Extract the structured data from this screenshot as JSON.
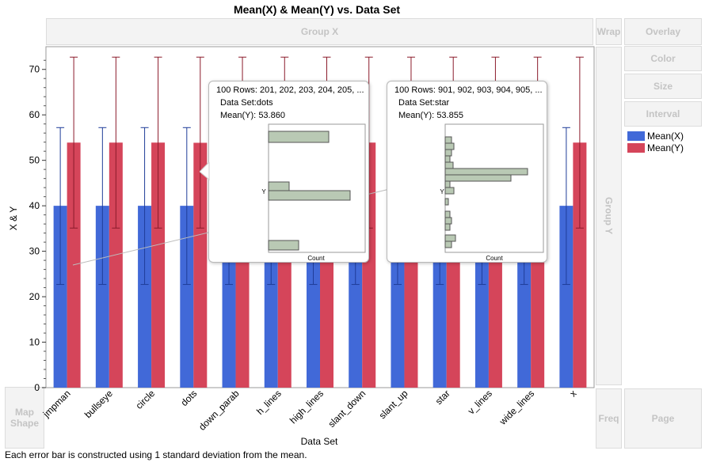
{
  "chart_data": {
    "type": "bar",
    "title": "Mean(X) & Mean(Y) vs. Data Set",
    "xlabel": "Data Set",
    "ylabel": "X & Y",
    "ylim": [
      0,
      75
    ],
    "yticks": [
      0,
      10,
      20,
      30,
      40,
      50,
      60,
      70
    ],
    "categories": [
      "jmpman",
      "bullseye",
      "circle",
      "dots",
      "down_parab",
      "h_lines",
      "high_lines",
      "slant_down",
      "slant_up",
      "star",
      "v_lines",
      "wide_lines",
      "x"
    ],
    "series": [
      {
        "name": "Mean(X)",
        "color": "#4169d8",
        "values": [
          40,
          40,
          40,
          40,
          40,
          40,
          40,
          40,
          40,
          40,
          40,
          40,
          40
        ],
        "err_low": [
          22.7,
          22.7,
          22.7,
          22.7,
          22.7,
          22.7,
          22.7,
          22.7,
          22.7,
          22.7,
          22.7,
          22.7,
          22.7
        ],
        "err_high": [
          57.2,
          57.2,
          57.2,
          57.2,
          57.2,
          57.2,
          57.2,
          57.2,
          57.2,
          57.2,
          57.2,
          57.2,
          57.2
        ]
      },
      {
        "name": "Mean(Y)",
        "color": "#d5455a",
        "values": [
          53.9,
          53.9,
          53.9,
          53.86,
          53.9,
          53.9,
          53.9,
          53.9,
          53.9,
          53.855,
          53.9,
          53.9,
          53.9
        ],
        "err_low": [
          35.1,
          35.1,
          35.1,
          35.1,
          35.1,
          35.1,
          35.1,
          35.1,
          35.1,
          35.1,
          35.1,
          35.1,
          35.1
        ],
        "err_high": [
          72.7,
          72.7,
          72.7,
          72.7,
          72.7,
          72.7,
          72.7,
          72.7,
          72.7,
          72.7,
          72.7,
          72.7,
          72.7
        ]
      }
    ],
    "footnote": "Each error bar is constructed using 1 standard deviation from the mean."
  },
  "zones": {
    "group_x": "Group X",
    "wrap": "Wrap",
    "overlay": "Overlay",
    "color": "Color",
    "size": "Size",
    "interval": "Interval",
    "group_y": "Group Y",
    "map_shape": "Map Shape",
    "freq": "Freq",
    "page": "Page"
  },
  "tooltips": [
    {
      "rows": "100 Rows:  201, 202, 203, 204, 205, ...",
      "dataset_label": "Data Set:",
      "dataset": "dots",
      "mean_label": "Mean(Y):",
      "mean": "53.860",
      "axis_label": "Y",
      "count_label": "Count",
      "hist": [
        0,
        0,
        0,
        0,
        0,
        0,
        0,
        0,
        0,
        0,
        0,
        1,
        0,
        0,
        0,
        0,
        0,
        0,
        0,
        0,
        0,
        0,
        0,
        0,
        0,
        0,
        0,
        0,
        0,
        0,
        0,
        0,
        0,
        0,
        0,
        0,
        0,
        0,
        0,
        0,
        0,
        0,
        0,
        0,
        0,
        0,
        0,
        0,
        0,
        0,
        0,
        0,
        0,
        0,
        0,
        0,
        0,
        0,
        0,
        0,
        0,
        0,
        0,
        0,
        0,
        0,
        0,
        0
      ]
    },
    {
      "rows": "100 Rows:  901, 902, 903, 904, 905, ...",
      "dataset_label": "Data Set:",
      "dataset": "star",
      "mean_label": "Mean(Y):",
      "mean": "53.855",
      "axis_label": "Y",
      "count_label": "Count"
    }
  ]
}
